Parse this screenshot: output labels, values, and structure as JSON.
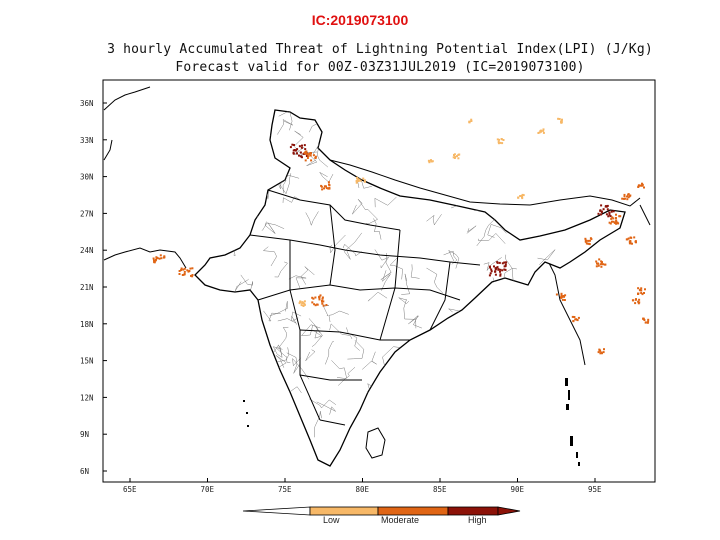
{
  "header": {
    "ic_label": "IC:2019073100"
  },
  "map": {
    "title_line1": "3 hourly Accumulated Threat of Lightning Potential Index(LPI) (J/Kg)",
    "title_line2": "Forecast valid for 00Z-03Z31JUL2019 (IC=2019073100)",
    "lat_ticks": [
      "36N",
      "33N",
      "30N",
      "27N",
      "24N",
      "21N",
      "18N",
      "15N",
      "12N",
      "9N",
      "6N"
    ],
    "lon_ticks": [
      "65E",
      "70E",
      "75E",
      "80E",
      "85E",
      "90E",
      "95E"
    ],
    "colors": {
      "low": "#f7b867",
      "moderate": "#e06515",
      "high": "#8c1208",
      "boundary": "#000000",
      "district": "#7a7a7a"
    }
  },
  "colorbar": {
    "labels": [
      "Low",
      "Moderate",
      "High"
    ]
  }
}
